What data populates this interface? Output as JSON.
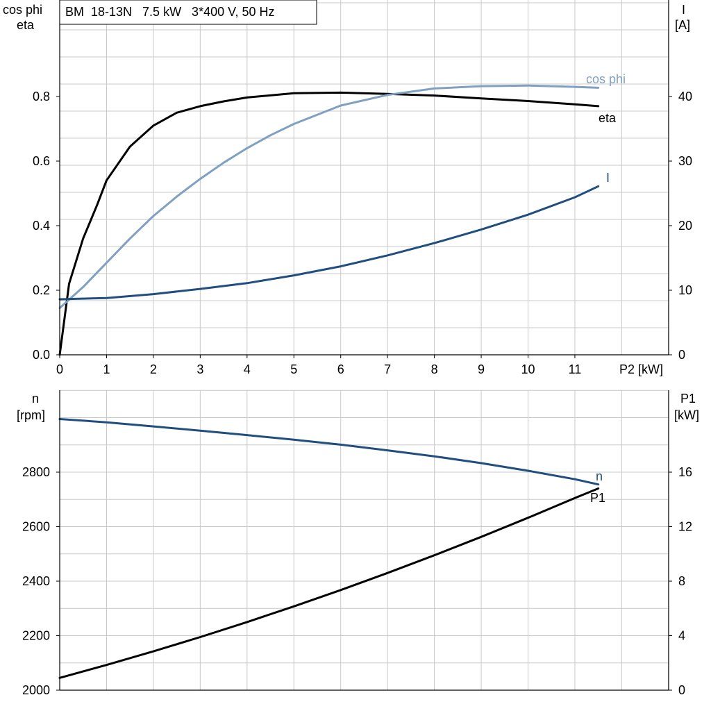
{
  "chart_data": {
    "header": "BM  18-13N   7.5 kW   3*400 V, 50 Hz",
    "colors": {
      "black": "#000000",
      "dark_blue": "#1f4e7f",
      "light_blue": "#7fa0c0",
      "grid": "#c8c8c8"
    },
    "charts": [
      {
        "type": "line",
        "x_axis": {
          "label": "P2 [kW]",
          "range": [
            0,
            13
          ],
          "ticks": [
            "0",
            "1",
            "2",
            "3",
            "4",
            "5",
            "6",
            "7",
            "8",
            "9",
            "10",
            "11"
          ]
        },
        "y_left": {
          "label_lines": [
            "cos phi",
            "eta"
          ],
          "range": [
            0,
            1.067
          ],
          "ticks": [
            "0.0",
            "0.2",
            "0.4",
            "0.6",
            "0.8"
          ]
        },
        "y_right": {
          "label_lines": [
            "I",
            "[A]"
          ],
          "range": [
            0,
            53.3
          ],
          "ticks": [
            "0",
            "10",
            "20",
            "30",
            "40"
          ]
        },
        "series": [
          {
            "name": "eta",
            "axis": "left",
            "color": "#000000",
            "x": [
              0,
              0.2,
              0.5,
              0.8,
              1.0,
              1.5,
              2.0,
              2.5,
              3.0,
              3.5,
              4.0,
              5.0,
              6.0,
              7.0,
              8.0,
              9.0,
              10.0,
              11.0,
              11.5
            ],
            "y": [
              0.0,
              0.22,
              0.36,
              0.465,
              0.54,
              0.645,
              0.71,
              0.75,
              0.77,
              0.785,
              0.797,
              0.81,
              0.812,
              0.808,
              0.803,
              0.794,
              0.786,
              0.776,
              0.77
            ]
          },
          {
            "name": "cos phi",
            "axis": "left",
            "color": "#7fa0c0",
            "x": [
              0,
              0.5,
              1.0,
              1.5,
              2.0,
              2.5,
              3.0,
              3.5,
              4.0,
              4.5,
              5.0,
              6.0,
              7.0,
              8.0,
              9.0,
              10.0,
              11.0,
              11.5
            ],
            "y": [
              0.145,
              0.21,
              0.285,
              0.36,
              0.43,
              0.49,
              0.545,
              0.595,
              0.64,
              0.68,
              0.715,
              0.772,
              0.805,
              0.825,
              0.832,
              0.834,
              0.83,
              0.827
            ]
          },
          {
            "name": "I",
            "axis": "right",
            "color": "#1f4e7f",
            "x": [
              0,
              1,
              2,
              3,
              4,
              5,
              6,
              7,
              8,
              9,
              10,
              11,
              11.5
            ],
            "y": [
              8.6,
              8.8,
              9.4,
              10.2,
              11.1,
              12.3,
              13.7,
              15.4,
              17.3,
              19.4,
              21.7,
              24.4,
              26.1
            ]
          }
        ]
      },
      {
        "type": "line",
        "x_axis": {
          "label": "",
          "range": [
            0,
            13
          ],
          "ticks": []
        },
        "y_left": {
          "label_lines": [
            "n",
            "[rpm]"
          ],
          "range": [
            2000,
            3100
          ],
          "ticks": [
            "2000",
            "2200",
            "2400",
            "2600",
            "2800"
          ]
        },
        "y_right": {
          "label_lines": [
            "P1",
            "[kW]"
          ],
          "range": [
            0,
            22
          ],
          "ticks": [
            "0",
            "4",
            "8",
            "12",
            "16"
          ]
        },
        "series": [
          {
            "name": "n",
            "axis": "left",
            "color": "#1f4e7f",
            "x": [
              0,
              1,
              2,
              3,
              4,
              5,
              6,
              7,
              8,
              9,
              10,
              11,
              11.5
            ],
            "y": [
              2995,
              2983,
              2968,
              2952,
              2936,
              2919,
              2901,
              2880,
              2858,
              2833,
              2805,
              2774,
              2755
            ]
          },
          {
            "name": "P1",
            "axis": "right",
            "color": "#000000",
            "x": [
              0,
              1,
              2,
              3,
              4,
              5,
              6,
              7,
              8,
              9,
              10,
              11,
              11.5
            ],
            "y": [
              0.9,
              1.85,
              2.85,
              3.9,
              5.0,
              6.15,
              7.35,
              8.6,
              9.9,
              11.25,
              12.65,
              14.1,
              14.8
            ]
          }
        ]
      }
    ]
  }
}
